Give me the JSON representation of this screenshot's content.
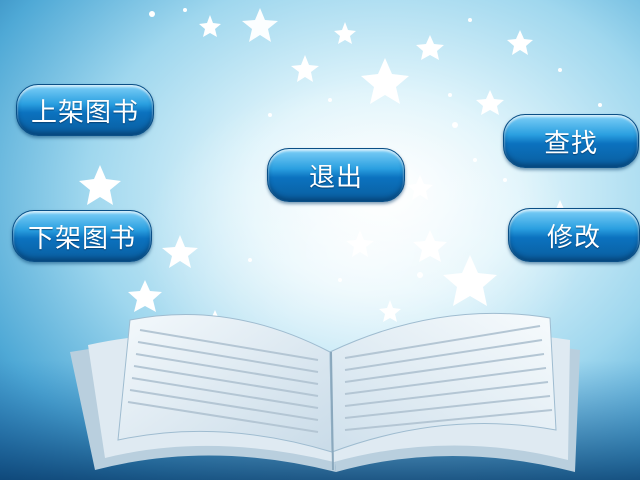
{
  "buttons": {
    "shelve_book": "上架图书",
    "unshelve_book": "下架图书",
    "exit": "退出",
    "search": "查找",
    "modify": "修改"
  },
  "colors": {
    "button_blue": "#0b72bf",
    "background_center": "#dff4fb",
    "background_edge": "#1f6fa9"
  }
}
